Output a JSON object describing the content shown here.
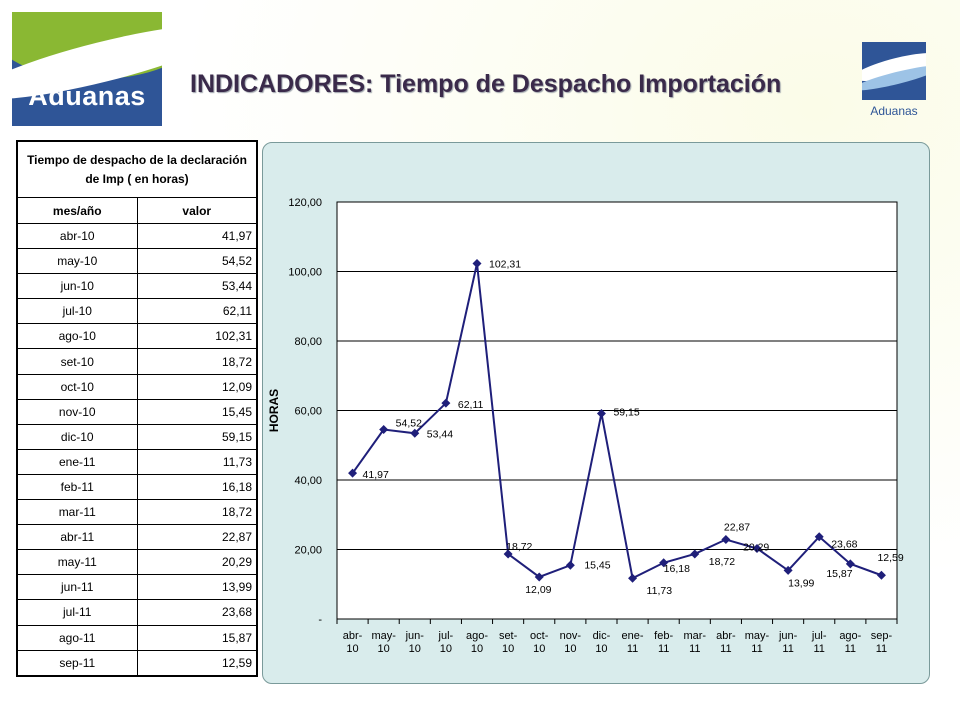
{
  "header": {
    "title": "INDICADORES: Tiempo de Despacho Importación",
    "logo_left_text": "Aduanas",
    "logo_right_text": "Aduanas"
  },
  "table": {
    "caption": "Tiempo de despacho de la declaración de Imp ( en horas)",
    "columns": [
      "mes/año",
      "valor"
    ],
    "rows": [
      {
        "mes": "abr-10",
        "valor": "41,97"
      },
      {
        "mes": "may-10",
        "valor": "54,52"
      },
      {
        "mes": "jun-10",
        "valor": "53,44"
      },
      {
        "mes": "jul-10",
        "valor": "62,11"
      },
      {
        "mes": "ago-10",
        "valor": "102,31"
      },
      {
        "mes": "set-10",
        "valor": "18,72"
      },
      {
        "mes": "oct-10",
        "valor": "12,09"
      },
      {
        "mes": "nov-10",
        "valor": "15,45"
      },
      {
        "mes": "dic-10",
        "valor": "59,15"
      },
      {
        "mes": "ene-11",
        "valor": "11,73"
      },
      {
        "mes": "feb-11",
        "valor": "16,18"
      },
      {
        "mes": "mar-11",
        "valor": "18,72"
      },
      {
        "mes": "abr-11",
        "valor": "22,87"
      },
      {
        "mes": "may-11",
        "valor": "20,29"
      },
      {
        "mes": "jun-11",
        "valor": "13,99"
      },
      {
        "mes": "jul-11",
        "valor": "23,68"
      },
      {
        "mes": "ago-11",
        "valor": "15,87"
      },
      {
        "mes": "sep-11",
        "valor": "12,59"
      }
    ]
  },
  "chart_data": {
    "type": "line",
    "categories": [
      "abr-10",
      "may-10",
      "jun-10",
      "jul-10",
      "ago-10",
      "set-10",
      "oct-10",
      "nov-10",
      "dic-10",
      "ene-11",
      "feb-11",
      "mar-11",
      "abr-11",
      "may-11",
      "jun-11",
      "jul-11",
      "ago-11",
      "sep-11"
    ],
    "category_labels": [
      [
        "abr-",
        "10"
      ],
      [
        "may-",
        "10"
      ],
      [
        "jun-",
        "10"
      ],
      [
        "jul-",
        "10"
      ],
      [
        "ago-",
        "10"
      ],
      [
        "set-",
        "10"
      ],
      [
        "oct-",
        "10"
      ],
      [
        "nov-",
        "10"
      ],
      [
        "dic-",
        "10"
      ],
      [
        "ene-",
        "11"
      ],
      [
        "feb-",
        "11"
      ],
      [
        "mar-",
        "11"
      ],
      [
        "abr-",
        "11"
      ],
      [
        "may-",
        "11"
      ],
      [
        "jun-",
        "11"
      ],
      [
        "jul-",
        "11"
      ],
      [
        "ago-",
        "11"
      ],
      [
        "sep-",
        "11"
      ]
    ],
    "series": [
      {
        "values": [
          41.97,
          54.52,
          53.44,
          62.11,
          102.31,
          18.72,
          12.09,
          15.45,
          59.15,
          11.73,
          16.18,
          18.72,
          22.87,
          20.29,
          13.99,
          23.68,
          15.87,
          12.59
        ]
      }
    ],
    "data_labels": [
      "41,97",
      "54,52",
      "53,44",
      "62,11",
      "102,31",
      "18,72",
      "12,09",
      "15,45",
      "59,15",
      "11,73",
      "16,18",
      "18,72",
      "22,87",
      "20,29",
      "13,99",
      "23,68",
      "15,87",
      "12,59"
    ],
    "title": "",
    "xlabel": "",
    "ylabel": "HORAS",
    "ylim": [
      0,
      120
    ],
    "yticks": [
      0,
      20,
      40,
      60,
      80,
      100,
      120
    ],
    "ytick_labels": [
      "-",
      "20,00",
      "40,00",
      "60,00",
      "80,00",
      "100,00",
      "120,00"
    ],
    "grid": true,
    "legend": "none",
    "colors": {
      "line": "#1f1f7a",
      "marker": "#1f1f7a",
      "grid": "#000000",
      "plot_bg": "#ffffff"
    }
  }
}
